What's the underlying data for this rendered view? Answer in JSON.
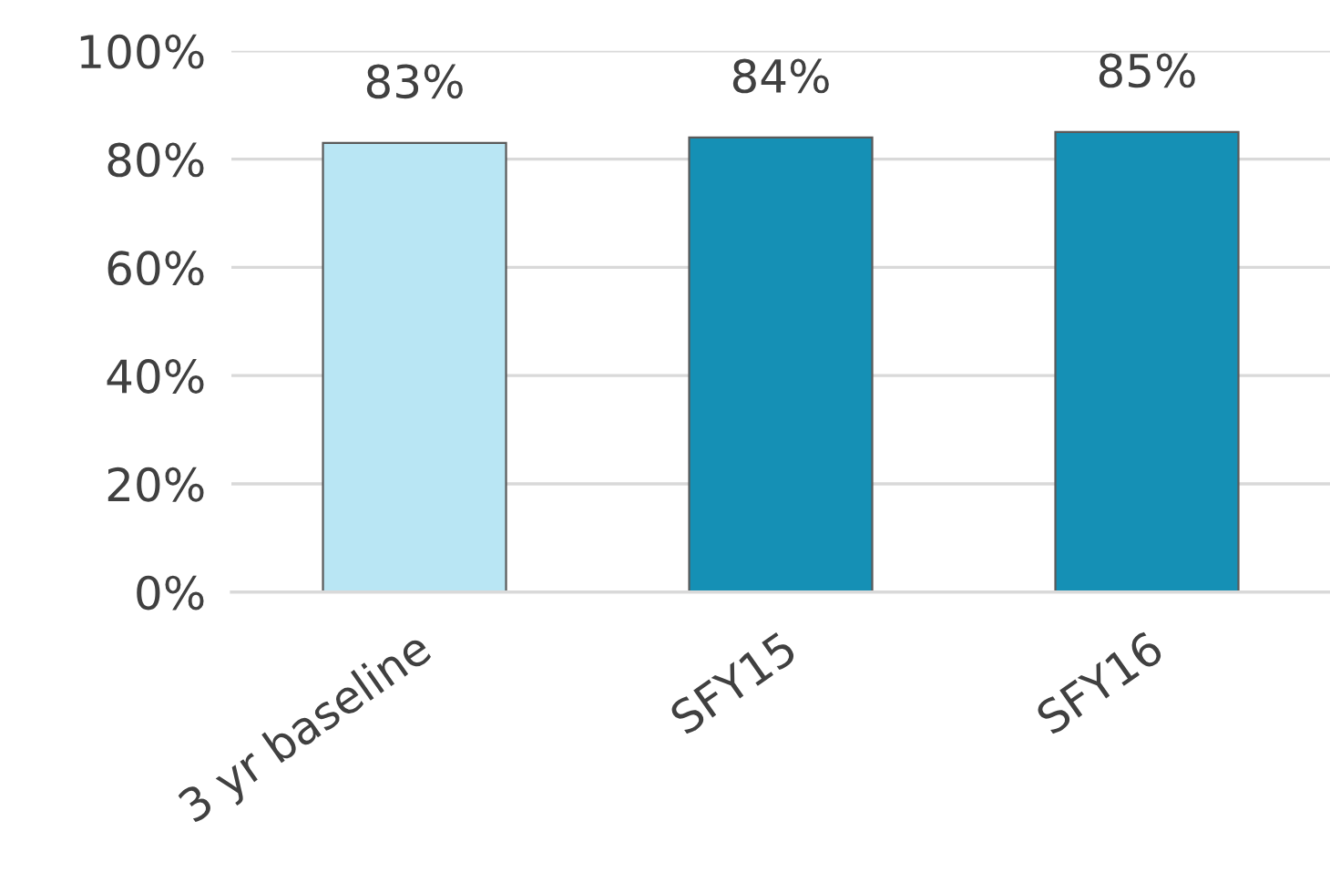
{
  "chart_data": {
    "type": "bar",
    "categories": [
      "3 yr baseline",
      "SFY15",
      "SFY16"
    ],
    "values": [
      83,
      84,
      85
    ],
    "colors": [
      "#b9e6f4",
      "#1590b5",
      "#1590b5"
    ],
    "value_labels": [
      "83%",
      "84%",
      "85%"
    ],
    "ylim": [
      0,
      100
    ],
    "yticks": [
      {
        "value": 0,
        "label": "0%"
      },
      {
        "value": 20,
        "label": "20%"
      },
      {
        "value": 40,
        "label": "40%"
      },
      {
        "value": 60,
        "label": "60%"
      },
      {
        "value": 80,
        "label": "80%"
      },
      {
        "value": 100,
        "label": "100%"
      }
    ],
    "grid": "y"
  }
}
